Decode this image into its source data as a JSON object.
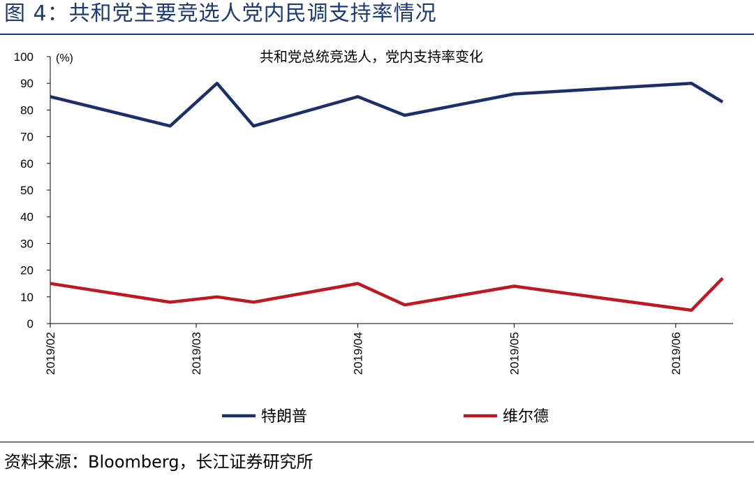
{
  "figure_title": "图 4：共和党主要竞选人党内民调支持率情况",
  "source_text": "资料来源：Bloomberg，长江证券研究所",
  "chart_data": {
    "type": "line",
    "title": "共和党总统竞选人，党内支持率变化",
    "unit_label": "(%)",
    "ylim": [
      0,
      100
    ],
    "yticks": [
      0,
      10,
      20,
      30,
      40,
      50,
      60,
      70,
      80,
      90,
      100
    ],
    "xlim": [
      "2019-02-01",
      "2019-06-12"
    ],
    "xticks": [
      {
        "date": "2019-02-01",
        "label": "2019/02"
      },
      {
        "date": "2019-03-01",
        "label": "2019/03"
      },
      {
        "date": "2019-04-01",
        "label": "2019/04"
      },
      {
        "date": "2019-05-01",
        "label": "2019/05"
      },
      {
        "date": "2019-06-01",
        "label": "2019/06"
      }
    ],
    "grid": false,
    "legend_position": "bottom",
    "series": [
      {
        "name": "特朗普",
        "color": "#1c2f6b",
        "points": [
          {
            "x": "2019-02-01",
            "y": 85
          },
          {
            "x": "2019-02-24",
            "y": 74
          },
          {
            "x": "2019-03-05",
            "y": 90
          },
          {
            "x": "2019-03-12",
            "y": 74
          },
          {
            "x": "2019-04-01",
            "y": 85
          },
          {
            "x": "2019-04-10",
            "y": 78
          },
          {
            "x": "2019-05-01",
            "y": 86
          },
          {
            "x": "2019-06-04",
            "y": 90
          },
          {
            "x": "2019-06-10",
            "y": 83
          }
        ]
      },
      {
        "name": "维尔德",
        "color": "#c01820",
        "points": [
          {
            "x": "2019-02-01",
            "y": 15
          },
          {
            "x": "2019-02-24",
            "y": 8
          },
          {
            "x": "2019-03-05",
            "y": 10
          },
          {
            "x": "2019-03-12",
            "y": 8
          },
          {
            "x": "2019-04-01",
            "y": 15
          },
          {
            "x": "2019-04-10",
            "y": 7
          },
          {
            "x": "2019-05-01",
            "y": 14
          },
          {
            "x": "2019-06-04",
            "y": 5
          },
          {
            "x": "2019-06-10",
            "y": 17
          }
        ]
      }
    ]
  }
}
